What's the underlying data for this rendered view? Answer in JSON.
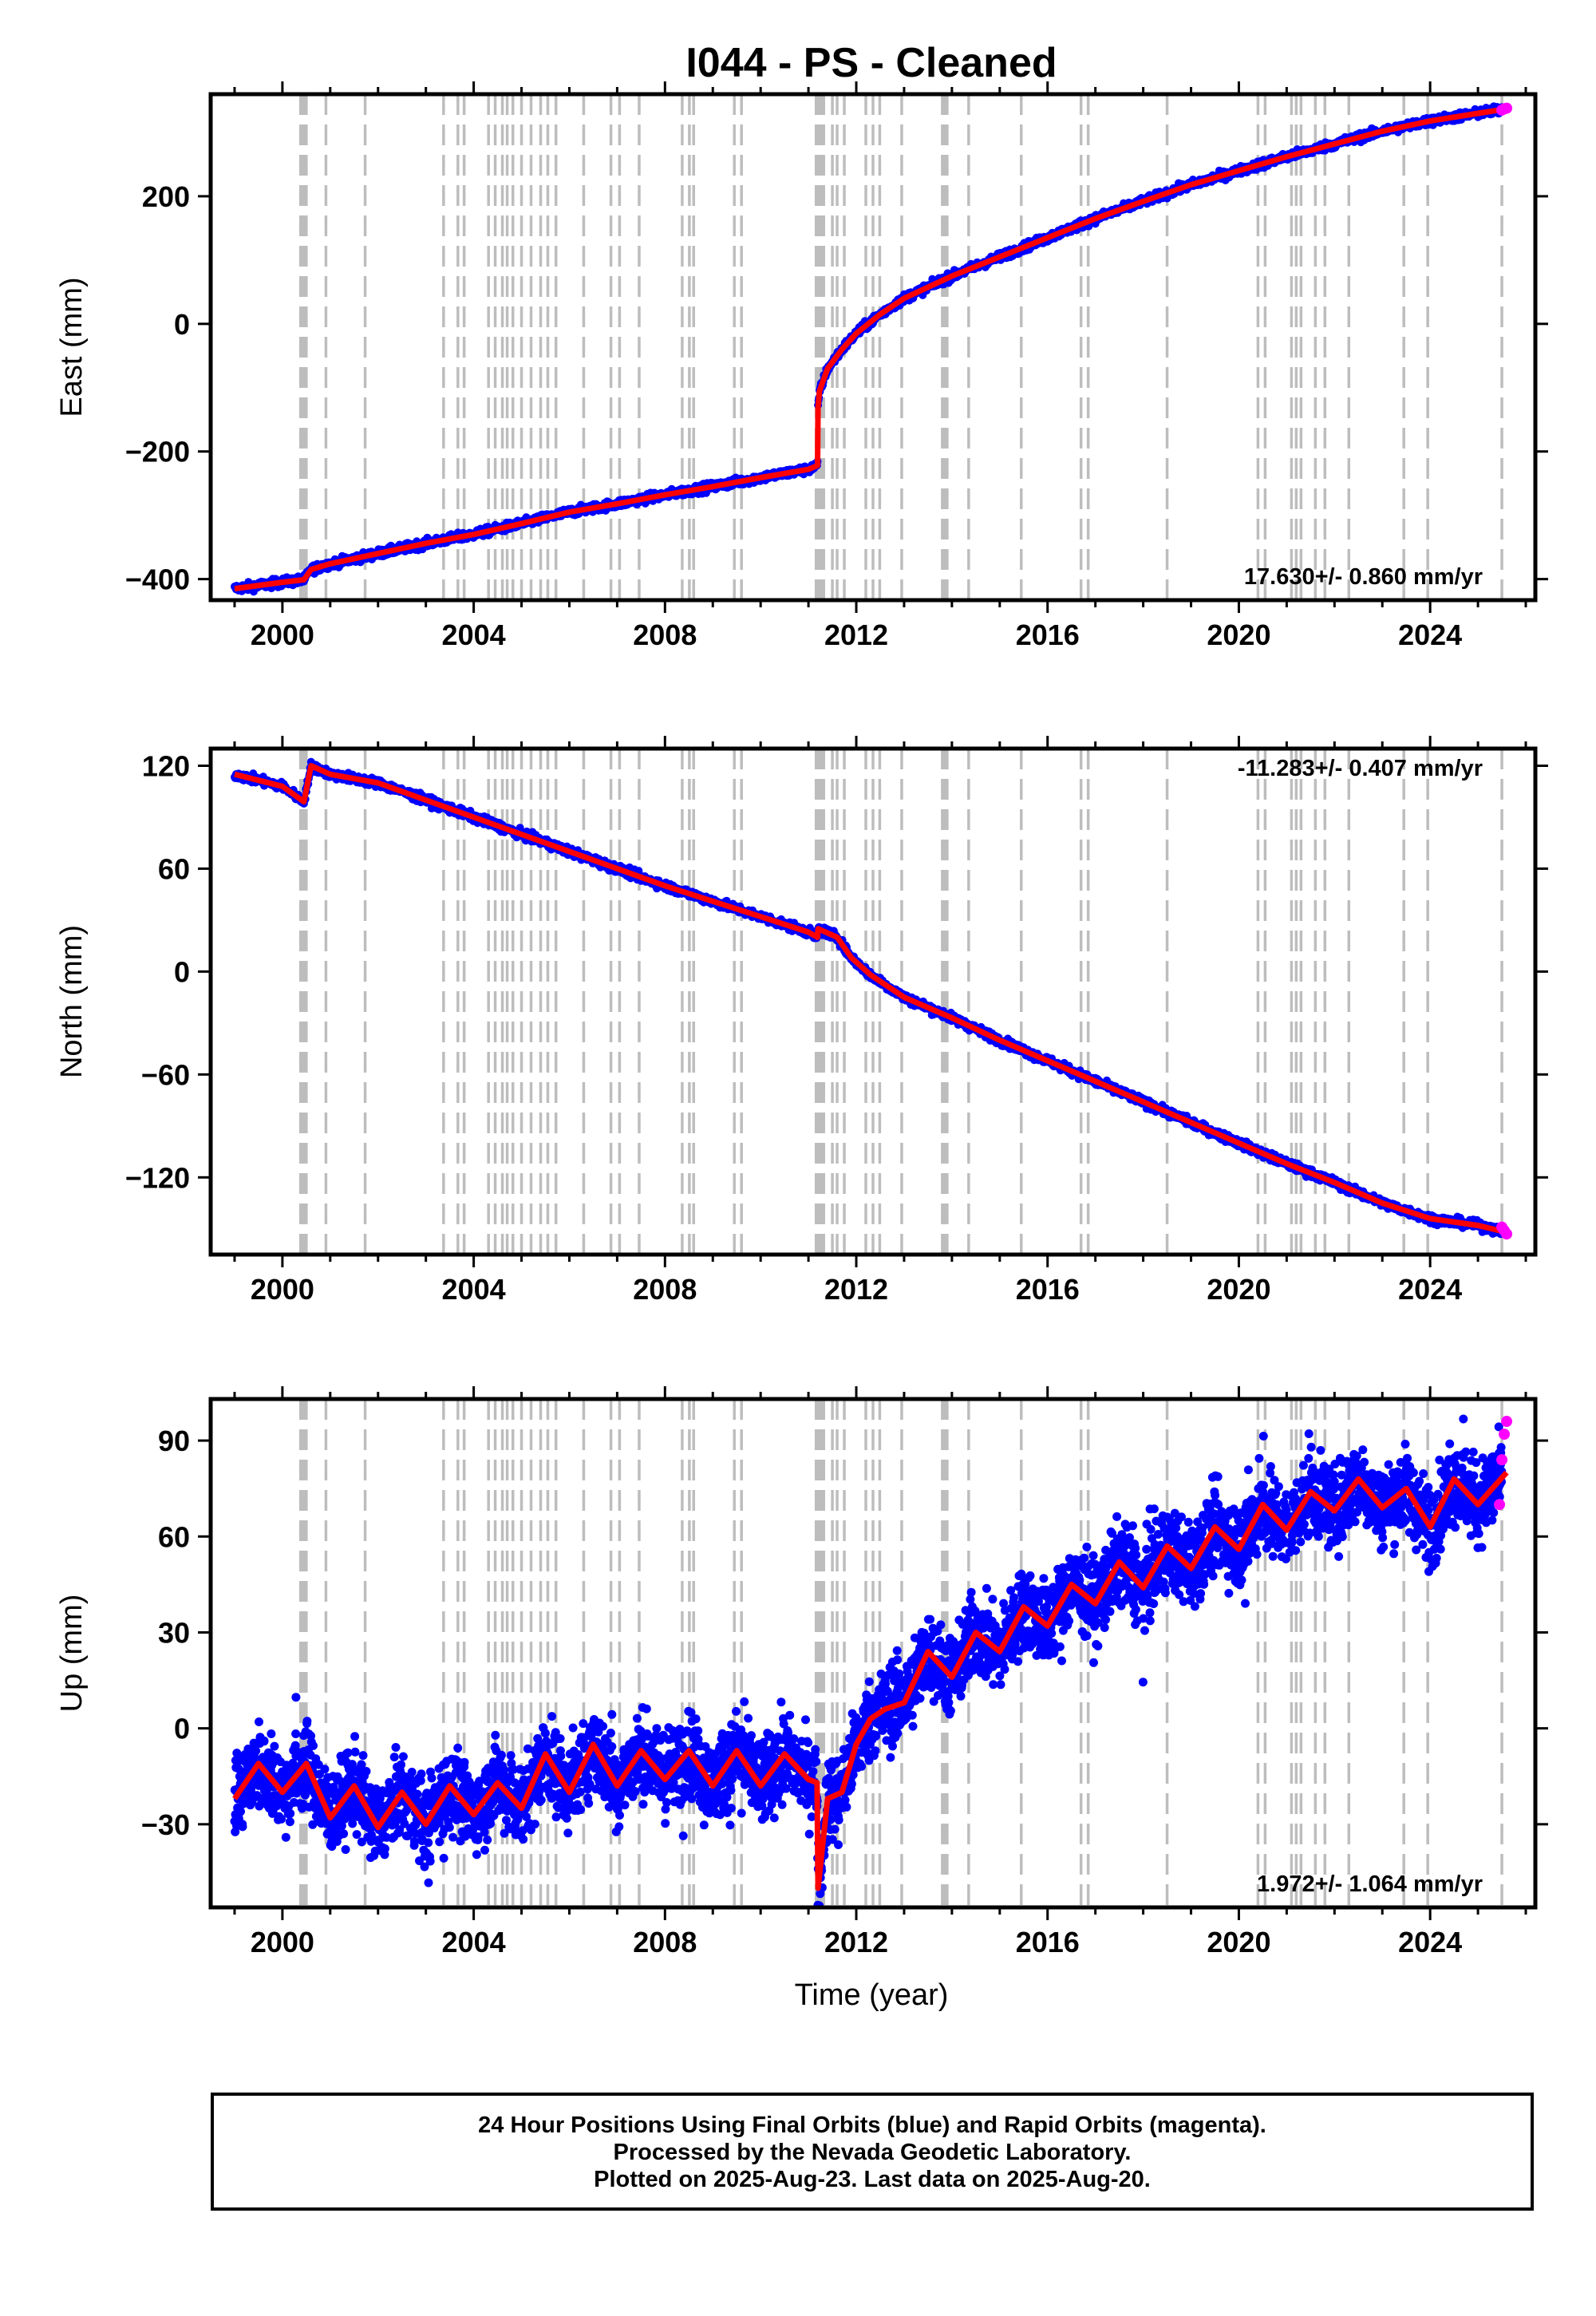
{
  "title": "I044  - PS - Cleaned",
  "xlabel": "Time (year)",
  "colors": {
    "final_orbit_points": "#0000ff",
    "rapid_orbit_points": "#ff00ff",
    "model_line": "#ff0000",
    "event_lines": "#bdbdbd",
    "frame": "#000000"
  },
  "event_line_years": [
    2000.38,
    2000.42,
    2000.46,
    2000.5,
    2000.91,
    2001.73,
    2003.37,
    2003.67,
    2003.8,
    2004.31,
    2004.45,
    2004.6,
    2004.7,
    2004.82,
    2005.0,
    2005.2,
    2005.4,
    2005.55,
    2005.72,
    2006.3,
    2006.87,
    2007.05,
    2007.46,
    2008.36,
    2008.51,
    2008.6,
    2009.45,
    2009.6,
    2011.16,
    2011.2,
    2011.24,
    2011.28,
    2011.32,
    2011.5,
    2011.6,
    2011.75,
    2012.2,
    2012.35,
    2012.49,
    2012.95,
    2013.8,
    2013.85,
    2013.9,
    2014.35,
    2015.45,
    2016.7,
    2016.85,
    2018.5,
    2020.4,
    2020.55,
    2021.1,
    2021.2,
    2021.3,
    2021.6,
    2021.8,
    2022.3,
    2023.45,
    2023.95,
    2025.5
  ],
  "footer": {
    "line1": "24 Hour Positions Using Final Orbits (blue) and Rapid Orbits (magenta).",
    "line2": "Processed by the Nevada Geodetic Laboratory.",
    "line3": "Plotted on 2025-Aug-23. Last data on 2025-Aug-20."
  },
  "chart_data": [
    {
      "type": "scatter",
      "ylabel": "East (mm)",
      "rate_text": "17.630+/- 0.860 mm/yr",
      "xlim": [
        1998.5,
        2026.2
      ],
      "ylim": [
        -433,
        360
      ],
      "xticks": [
        2000,
        2004,
        2008,
        2012,
        2016,
        2020,
        2024
      ],
      "yticks": [
        -400,
        -200,
        0,
        200
      ],
      "ytick_labels": [
        "−400",
        "−200",
        "0",
        "200"
      ],
      "model": {
        "x": [
          1999.0,
          2000.0,
          2000.45,
          2000.6,
          2001.0,
          2002.0,
          2003.0,
          2004.0,
          2005.0,
          2006.0,
          2007.0,
          2008.0,
          2009.0,
          2010.0,
          2011.0,
          2011.19,
          2011.2,
          2011.23,
          2011.4,
          2011.7,
          2012.0,
          2012.5,
          2013.0,
          2014.0,
          2015.0,
          2016.0,
          2017.0,
          2018.0,
          2019.0,
          2020.0,
          2021.0,
          2022.0,
          2023.0,
          2024.0,
          2025.0,
          2025.6
        ],
        "y": [
          -415,
          -405,
          -401,
          -385,
          -376,
          -360,
          -344,
          -330,
          -313,
          -295,
          -282,
          -268,
          -255,
          -241,
          -228,
          -222,
          -130,
          -105,
          -70,
          -40,
          -15,
          15,
          40,
          75,
          105,
          135,
          165,
          192,
          218,
          240,
          262,
          282,
          302,
          318,
          330,
          337
        ]
      },
      "rapid_points": {
        "x": [
          2025.5,
          2025.55,
          2025.6
        ],
        "y": [
          335,
          337,
          338
        ]
      }
    },
    {
      "type": "scatter",
      "ylabel": "North (mm)",
      "rate_text": "-11.283+/- 0.407 mm/yr",
      "xlim": [
        1998.5,
        2026.2
      ],
      "ylim": [
        -165,
        130
      ],
      "xticks": [
        2000,
        2004,
        2008,
        2012,
        2016,
        2020,
        2024
      ],
      "yticks": [
        -120,
        -60,
        0,
        60,
        120
      ],
      "ytick_labels": [
        "−120",
        "−60",
        "0",
        "60",
        "120"
      ],
      "model": {
        "x": [
          1999.0,
          2000.0,
          2000.45,
          2000.6,
          2001.0,
          2002.0,
          2003.0,
          2004.0,
          2005.0,
          2006.0,
          2007.0,
          2008.0,
          2009.0,
          2010.0,
          2011.0,
          2011.19,
          2011.2,
          2011.6,
          2011.9,
          2012.3,
          2013.0,
          2014.0,
          2015.0,
          2016.0,
          2017.0,
          2018.0,
          2019.0,
          2020.0,
          2021.0,
          2022.0,
          2023.0,
          2024.0,
          2025.0,
          2025.6
        ],
        "y": [
          115,
          108,
          99,
          120,
          115,
          110,
          100,
          90,
          80,
          70,
          60,
          50,
          41,
          32,
          23,
          20,
          25,
          20,
          8,
          -2,
          -15,
          -27,
          -40,
          -52,
          -64,
          -76,
          -88,
          -100,
          -112,
          -123,
          -135,
          -144,
          -148,
          -152
        ]
      },
      "rapid_points": {
        "x": [
          2025.5,
          2025.55,
          2025.6
        ],
        "y": [
          -149,
          -151,
          -153
        ]
      }
    },
    {
      "type": "scatter",
      "ylabel": "Up (mm)",
      "rate_text": "1.972+/- 1.064 mm/yr",
      "xlim": [
        1998.5,
        2026.2
      ],
      "ylim": [
        -56,
        103
      ],
      "xticks": [
        2000,
        2004,
        2008,
        2012,
        2016,
        2020,
        2024
      ],
      "yticks": [
        -30,
        0,
        30,
        60,
        90
      ],
      "ytick_labels": [
        "−30",
        "0",
        "30",
        "60",
        "90"
      ],
      "model": {
        "x": [
          1999.0,
          1999.5,
          2000.0,
          2000.5,
          2001.0,
          2001.5,
          2002.0,
          2002.5,
          2003.0,
          2003.5,
          2004.0,
          2004.5,
          2005.0,
          2005.5,
          2006.0,
          2006.5,
          2007.0,
          2007.5,
          2008.0,
          2008.5,
          2009.0,
          2009.5,
          2010.0,
          2010.5,
          2011.0,
          2011.18,
          2011.2,
          2011.4,
          2011.7,
          2012.0,
          2012.3,
          2012.6,
          2013.0,
          2013.5,
          2014.0,
          2014.5,
          2015.0,
          2015.5,
          2016.0,
          2016.5,
          2017.0,
          2017.5,
          2018.0,
          2018.5,
          2019.0,
          2019.5,
          2020.0,
          2020.5,
          2021.0,
          2021.5,
          2022.0,
          2022.5,
          2023.0,
          2023.5,
          2024.0,
          2024.5,
          2025.0,
          2025.6
        ],
        "y": [
          -22,
          -11,
          -20,
          -11,
          -28,
          -18,
          -31,
          -20,
          -30,
          -18,
          -27,
          -17,
          -25,
          -8,
          -20,
          -5,
          -18,
          -7,
          -16,
          -7,
          -18,
          -7,
          -18,
          -8,
          -16,
          -17,
          -50,
          -22,
          -20,
          -5,
          3,
          6,
          8,
          24,
          16,
          30,
          24,
          38,
          32,
          45,
          39,
          52,
          44,
          57,
          50,
          63,
          56,
          70,
          62,
          74,
          68,
          78,
          69,
          75,
          63,
          78,
          70,
          80
        ]
      },
      "scatter_spread_mm": 9,
      "rapid_points": {
        "x": [
          2025.45,
          2025.5,
          2025.55,
          2025.6
        ],
        "y": [
          70,
          84,
          92,
          96
        ]
      }
    }
  ]
}
